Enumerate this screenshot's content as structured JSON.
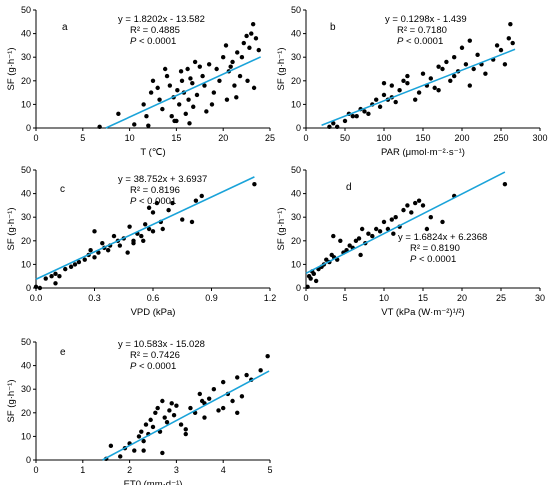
{
  "colors": {
    "points": "#000000",
    "fit_line": "#1aa3d9",
    "axes": "#000000"
  },
  "chart_data": [
    {
      "panel": "a",
      "type": "scatter",
      "xlabel": "T (℃)",
      "ylabel": "SF (g·h⁻¹)",
      "xlim": [
        0,
        25
      ],
      "ylim": [
        0,
        50
      ],
      "xticks": [
        0,
        5,
        10,
        15,
        20,
        25
      ],
      "yticks": [
        0,
        10,
        20,
        30,
        40,
        50
      ],
      "tick_labels_x": [
        "0",
        "5",
        "10",
        "15",
        "20",
        "25"
      ],
      "tick_labels_y": [
        "0",
        "10",
        "20",
        "30",
        "40",
        "50"
      ],
      "equation": "y = 1.8202x - 13.582",
      "r2": "R² = 0.4885",
      "p_prefix": "P",
      "p_value": " < 0.0001",
      "fit": {
        "slope": 1.8202,
        "intercept": -13.582,
        "x_range": [
          7.46,
          24.0
        ]
      },
      "x": [
        6.8,
        8.8,
        10.5,
        11.5,
        11.8,
        12.3,
        12.5,
        13.0,
        13.2,
        13.5,
        13.8,
        14.0,
        14.3,
        14.5,
        14.7,
        15.0,
        15.1,
        15.3,
        15.5,
        15.6,
        15.8,
        16.0,
        16.2,
        16.3,
        16.5,
        16.7,
        16.8,
        17.0,
        17.2,
        17.5,
        17.8,
        18.0,
        18.5,
        18.8,
        19.0,
        19.3,
        19.6,
        20.0,
        20.3,
        20.6,
        20.8,
        21.0,
        21.2,
        21.5,
        21.8,
        22.0,
        22.2,
        22.5,
        22.8,
        23.0,
        23.2,
        23.5,
        23.8,
        12.0,
        14.8,
        16.4,
        18.2,
        20.4,
        21.4,
        22.6,
        23.3
      ],
      "y": [
        0.5,
        6,
        1.5,
        10,
        5,
        15,
        20,
        17,
        12,
        8,
        25,
        22,
        18,
        5,
        13,
        3,
        16,
        10,
        24,
        20,
        15,
        6,
        25,
        12,
        21,
        19,
        9,
        28,
        14,
        26,
        22,
        18,
        27,
        10,
        15,
        25,
        20,
        30,
        35,
        24,
        26,
        28,
        18,
        32,
        22,
        30,
        36,
        39,
        34,
        40,
        44,
        38,
        33,
        1,
        3,
        2,
        7,
        12,
        13,
        20,
        17
      ]
    },
    {
      "panel": "b",
      "type": "scatter",
      "xlabel": "PAR (μmol·m⁻²·s⁻¹)",
      "ylabel": "SF (g·h⁻¹)",
      "xlim": [
        0,
        300
      ],
      "ylim": [
        0,
        50
      ],
      "xticks": [
        0,
        50,
        100,
        150,
        200,
        250,
        300
      ],
      "yticks": [
        0,
        10,
        20,
        30,
        40,
        50
      ],
      "tick_labels_x": [
        "0",
        "50",
        "100",
        "150",
        "200",
        "250",
        "300"
      ],
      "tick_labels_y": [
        "0",
        "10",
        "20",
        "30",
        "40",
        "50"
      ],
      "equation": "y = 0.1298x - 1.439",
      "r2": "R² = 0.7180",
      "p_prefix": "P",
      "p_value": " < 0.0001",
      "fit": {
        "slope": 0.1298,
        "intercept": -1.439,
        "x_range": [
          20,
          268
        ]
      },
      "x": [
        30,
        35,
        40,
        50,
        55,
        60,
        65,
        70,
        75,
        80,
        85,
        90,
        95,
        100,
        100,
        105,
        110,
        115,
        120,
        125,
        130,
        140,
        145,
        150,
        155,
        160,
        165,
        170,
        175,
        180,
        185,
        190,
        190,
        195,
        200,
        205,
        210,
        215,
        220,
        225,
        230,
        240,
        245,
        250,
        255,
        260,
        262,
        265,
        110,
        130,
        170,
        210
      ],
      "y": [
        0.5,
        2,
        0.5,
        3,
        6,
        5,
        5,
        8,
        7,
        6,
        10,
        12,
        9,
        14,
        19,
        12,
        18,
        11,
        16,
        20,
        19,
        12,
        15,
        23,
        18,
        21,
        17,
        26,
        25,
        28,
        20,
        30,
        22,
        24,
        34,
        27,
        18,
        25,
        31,
        27,
        23,
        29,
        35,
        33,
        27,
        38,
        44,
        36,
        13,
        22,
        16,
        37
      ]
    },
    {
      "panel": "c",
      "type": "scatter",
      "xlabel": "VPD (kPa)",
      "ylabel": "SF (g·h⁻¹)",
      "xlim": [
        0,
        1.2
      ],
      "ylim": [
        0,
        50
      ],
      "xticks": [
        0.0,
        0.3,
        0.6,
        0.9,
        1.2
      ],
      "yticks": [
        0,
        10,
        20,
        30,
        40,
        50
      ],
      "tick_labels_x": [
        "0.0",
        "0.3",
        "0.6",
        "0.9",
        "1.2"
      ],
      "tick_labels_y": [
        "0",
        "10",
        "20",
        "30",
        "40",
        "50"
      ],
      "equation": "y = 38.752x + 3.6937",
      "r2": "R² = 0.8196",
      "p_prefix": "P",
      "p_value": " < 0.0001",
      "fit": {
        "slope": 38.752,
        "intercept": 3.6937,
        "x_range": [
          0.0,
          1.12
        ]
      },
      "x": [
        0.0,
        0.02,
        0.05,
        0.08,
        0.1,
        0.12,
        0.15,
        0.18,
        0.2,
        0.22,
        0.25,
        0.27,
        0.28,
        0.3,
        0.32,
        0.34,
        0.35,
        0.37,
        0.38,
        0.4,
        0.42,
        0.43,
        0.45,
        0.47,
        0.48,
        0.5,
        0.52,
        0.54,
        0.55,
        0.56,
        0.58,
        0.6,
        0.6,
        0.62,
        0.64,
        0.65,
        0.68,
        0.7,
        0.75,
        0.8,
        0.82,
        0.85,
        1.12,
        0.1,
        0.3,
        0.5,
        0.58
      ],
      "y": [
        0.5,
        0,
        4,
        5,
        6,
        5,
        8,
        9,
        10,
        11,
        12,
        14,
        16,
        13,
        15,
        19,
        17,
        16,
        18,
        22,
        20,
        18,
        21,
        15,
        26,
        19,
        23,
        22,
        20,
        27,
        25,
        32,
        24,
        36,
        28,
        25,
        33,
        36,
        29,
        28,
        37,
        39,
        44,
        2,
        24,
        20,
        34
      ]
    },
    {
      "panel": "d",
      "type": "scatter",
      "xlabel": "VT (kPa (W·m⁻²)¹/²)",
      "ylabel": "SF (g·h⁻¹)",
      "xlim": [
        0,
        30
      ],
      "ylim": [
        0,
        50
      ],
      "xticks": [
        0,
        5,
        10,
        15,
        20,
        25,
        30
      ],
      "yticks": [
        0,
        10,
        20,
        30,
        40,
        50
      ],
      "tick_labels_x": [
        "0",
        "5",
        "10",
        "15",
        "20",
        "25",
        "30"
      ],
      "tick_labels_y": [
        "0",
        "10",
        "20",
        "30",
        "40",
        "50"
      ],
      "equation": "y = 1.6824x + 6.2368",
      "r2": "R² = 0.8190",
      "p_prefix": "P",
      "p_value": " < 0.0001",
      "fit": {
        "slope": 1.6824,
        "intercept": 6.2368,
        "x_range": [
          0.0,
          25.5
        ]
      },
      "x": [
        0.2,
        0.4,
        0.6,
        0.8,
        1.0,
        1.3,
        1.6,
        2.0,
        2.3,
        2.6,
        3.0,
        3.3,
        3.6,
        4.0,
        4.4,
        4.8,
        5.2,
        5.6,
        6.0,
        6.4,
        6.8,
        7.2,
        7.6,
        8.0,
        8.5,
        9.0,
        9.5,
        10.0,
        10.5,
        11.0,
        11.5,
        12.0,
        12.5,
        13.0,
        13.5,
        14.0,
        14.5,
        15.0,
        15.5,
        16.0,
        17.5,
        19.0,
        25.5,
        3.5,
        7.0,
        11.2
      ],
      "y": [
        0.5,
        5,
        4,
        7,
        6,
        3,
        8,
        9,
        10,
        12,
        11,
        14,
        13,
        12,
        20,
        15,
        16,
        18,
        17,
        20,
        21,
        25,
        19,
        23,
        22,
        25,
        24,
        28,
        25,
        29,
        30,
        26,
        33,
        35,
        32,
        36,
        37,
        35,
        25,
        30,
        28,
        39,
        44,
        22,
        14,
        23
      ]
    },
    {
      "panel": "e",
      "type": "scatter",
      "xlabel": "ET0 (mm·d⁻¹)",
      "ylabel": "SF (g·h⁻¹)",
      "xlim": [
        0,
        5
      ],
      "ylim": [
        0,
        50
      ],
      "xticks": [
        0,
        1,
        2,
        3,
        4,
        5
      ],
      "yticks": [
        0,
        10,
        20,
        30,
        40,
        50
      ],
      "tick_labels_x": [
        "0",
        "1",
        "2",
        "3",
        "4",
        "5"
      ],
      "tick_labels_y": [
        "0",
        "10",
        "20",
        "30",
        "40",
        "50"
      ],
      "equation": "y = 10.583x - 15.028",
      "r2": "R² = 0.7426",
      "p_prefix": "P",
      "p_value": " < 0.0001",
      "fit": {
        "slope": 10.583,
        "intercept": -15.028,
        "x_range": [
          1.42,
          4.98
        ]
      },
      "x": [
        1.5,
        1.6,
        1.8,
        1.9,
        2.0,
        2.1,
        2.2,
        2.25,
        2.3,
        2.35,
        2.4,
        2.45,
        2.5,
        2.55,
        2.6,
        2.65,
        2.7,
        2.75,
        2.8,
        2.85,
        2.9,
        2.95,
        3.0,
        3.1,
        3.2,
        3.3,
        3.4,
        3.5,
        3.55,
        3.6,
        3.7,
        3.8,
        3.9,
        4.0,
        4.1,
        4.2,
        4.3,
        4.4,
        4.5,
        4.6,
        4.8,
        4.95,
        2.3,
        2.7,
        3.2,
        3.6,
        4.0,
        4.3
      ],
      "y": [
        0.5,
        6,
        1.5,
        5,
        7,
        4,
        10,
        12,
        8,
        15,
        11,
        17,
        14,
        20,
        22,
        12,
        25,
        18,
        16,
        21,
        24,
        19,
        23,
        15,
        13,
        22,
        20,
        28,
        25,
        24,
        26,
        30,
        21,
        33,
        28,
        25,
        35,
        27,
        36,
        34,
        38,
        44,
        4,
        3,
        11,
        18,
        22,
        20
      ]
    }
  ]
}
